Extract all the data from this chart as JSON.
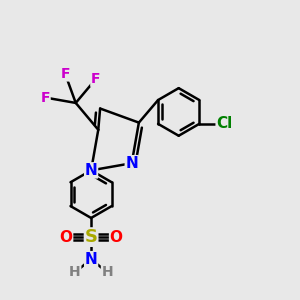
{
  "background_color": "#e8e8e8",
  "bond_color": "#000000",
  "bond_width": 1.8,
  "font_size_atom": 11,
  "font_size_small": 9,
  "colors": {
    "F": "#cc00cc",
    "N": "#0000ff",
    "Cl": "#008000",
    "S": "#aaaa00",
    "O": "#ff0000",
    "NH_gray": "#808080",
    "C": "#000000"
  }
}
